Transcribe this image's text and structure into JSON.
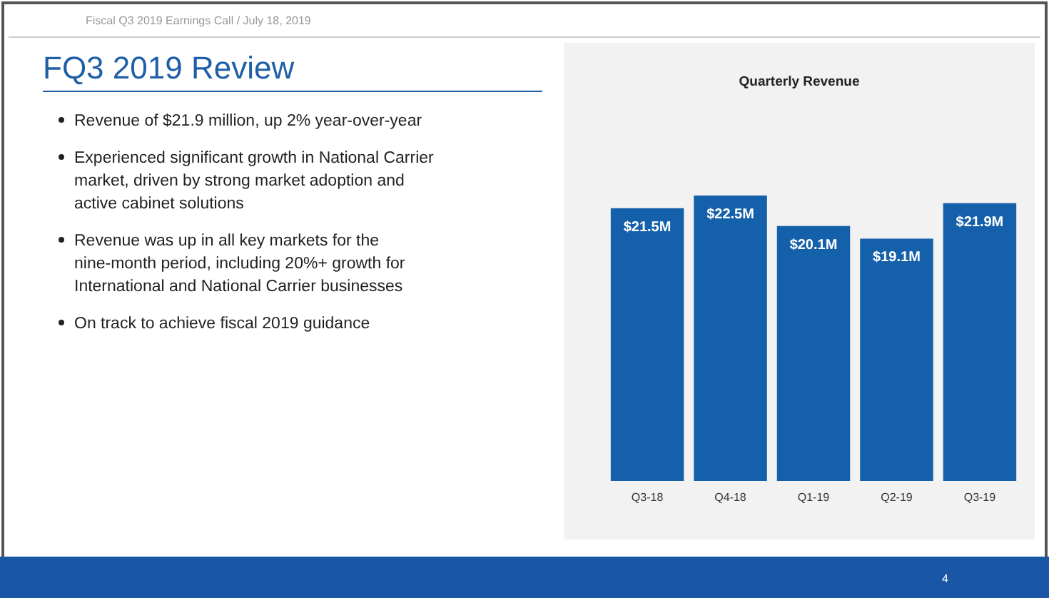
{
  "chart_data": {
    "type": "bar",
    "title": "Quarterly Revenue",
    "categories": [
      "Q3-18",
      "Q4-18",
      "Q1-19",
      "Q2-19",
      "Q3-19"
    ],
    "values": [
      21.5,
      22.5,
      20.1,
      19.1,
      21.9
    ],
    "color": "#1460aa",
    "data_labels": true,
    "value_labels": [
      "$21.5M",
      "$22.5M",
      "$20.1M",
      "$19.1M",
      "$21.9M"
    ],
    "subtitle": "FQ3 2019 Review",
    "annotations": [
      "Fiscal Q3 2019 Earnings Call / July 18, 2019",
      "Revenue of $21.9 million, up 2% year-over-year",
      "Experienced significant growth in National Carrier market, driven by strong market adoption and active cabinet solutions",
      "Revenue was up in all key markets for the nine-month period, including 20%+ growth for International and National Carrier businesses",
      "On track to achieve fiscal 2019 guidance",
      "4"
    ]
  }
}
